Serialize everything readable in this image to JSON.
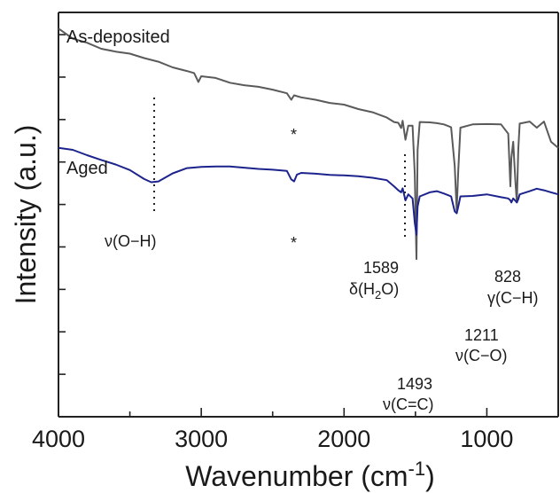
{
  "chart_data": {
    "type": "line",
    "title": "",
    "xlabel": "Wavenumber (cm",
    "xlabel_sup": "-1",
    "xlabel_close": ")",
    "ylabel": "Intensity (a.u.)",
    "xlim": [
      4000,
      500
    ],
    "x_reversed": true,
    "ylim": [
      0,
      100
    ],
    "y_tick_labels_shown": false,
    "grid": false,
    "x_ticks": [
      4000,
      3000,
      2000,
      1000
    ],
    "series": [
      {
        "name": "As-deposited",
        "color": "#5a5a5a",
        "points": [
          [
            4000,
            96
          ],
          [
            3900,
            93.5
          ],
          [
            3800,
            92.5
          ],
          [
            3700,
            91
          ],
          [
            3600,
            90.3
          ],
          [
            3500,
            89.8
          ],
          [
            3400,
            88.7
          ],
          [
            3300,
            87.8
          ],
          [
            3200,
            86.4
          ],
          [
            3100,
            85.5
          ],
          [
            3050,
            85
          ],
          [
            3020,
            82.8
          ],
          [
            3000,
            84.2
          ],
          [
            2900,
            83.8
          ],
          [
            2800,
            82.6
          ],
          [
            2700,
            82
          ],
          [
            2600,
            81.6
          ],
          [
            2500,
            80.9
          ],
          [
            2400,
            80
          ],
          [
            2370,
            78.4
          ],
          [
            2350,
            79.5
          ],
          [
            2300,
            79
          ],
          [
            2200,
            78.4
          ],
          [
            2100,
            77.6
          ],
          [
            2000,
            77.2
          ],
          [
            1900,
            76.1
          ],
          [
            1800,
            75.3
          ],
          [
            1700,
            74
          ],
          [
            1650,
            72.9
          ],
          [
            1620,
            72.7
          ],
          [
            1600,
            71.4
          ],
          [
            1590,
            73.2
          ],
          [
            1570,
            68.5
          ],
          [
            1550,
            72
          ],
          [
            1520,
            72
          ],
          [
            1505,
            60
          ],
          [
            1493,
            39
          ],
          [
            1485,
            66
          ],
          [
            1470,
            72.9
          ],
          [
            1400,
            72.8
          ],
          [
            1350,
            72.6
          ],
          [
            1300,
            72.3
          ],
          [
            1250,
            71.6
          ],
          [
            1225,
            62
          ],
          [
            1211,
            51
          ],
          [
            1200,
            61
          ],
          [
            1185,
            71.5
          ],
          [
            1100,
            72.3
          ],
          [
            1000,
            72.4
          ],
          [
            900,
            72.3
          ],
          [
            850,
            70
          ],
          [
            835,
            57
          ],
          [
            828,
            64
          ],
          [
            815,
            68
          ],
          [
            800,
            58
          ],
          [
            790,
            53
          ],
          [
            780,
            66
          ],
          [
            770,
            72.5
          ],
          [
            700,
            73
          ],
          [
            650,
            71.5
          ],
          [
            600,
            73
          ],
          [
            550,
            68
          ],
          [
            500,
            66.5
          ]
        ]
      },
      {
        "name": "Aged",
        "color": "#1c238c",
        "points": [
          [
            4000,
            66.5
          ],
          [
            3900,
            66
          ],
          [
            3800,
            64.7
          ],
          [
            3700,
            63.5
          ],
          [
            3600,
            62.4
          ],
          [
            3500,
            61
          ],
          [
            3400,
            58.8
          ],
          [
            3350,
            58
          ],
          [
            3300,
            58.2
          ],
          [
            3200,
            60.2
          ],
          [
            3100,
            61.5
          ],
          [
            3000,
            61.8
          ],
          [
            2900,
            61.9
          ],
          [
            2800,
            61.9
          ],
          [
            2700,
            61.6
          ],
          [
            2600,
            61.3
          ],
          [
            2500,
            61.1
          ],
          [
            2400,
            60.8
          ],
          [
            2370,
            58.7
          ],
          [
            2350,
            58.2
          ],
          [
            2330,
            59.9
          ],
          [
            2300,
            60.3
          ],
          [
            2200,
            60.1
          ],
          [
            2100,
            59.8
          ],
          [
            2000,
            59.7
          ],
          [
            1900,
            59.5
          ],
          [
            1800,
            59.1
          ],
          [
            1700,
            58.5
          ],
          [
            1650,
            57
          ],
          [
            1620,
            56
          ],
          [
            1600,
            55.5
          ],
          [
            1590,
            56.5
          ],
          [
            1570,
            53.5
          ],
          [
            1550,
            55
          ],
          [
            1520,
            54
          ],
          [
            1505,
            48
          ],
          [
            1493,
            45
          ],
          [
            1485,
            52
          ],
          [
            1470,
            54.5
          ],
          [
            1400,
            55.5
          ],
          [
            1350,
            55.8
          ],
          [
            1300,
            55.2
          ],
          [
            1250,
            54.5
          ],
          [
            1225,
            50.8
          ],
          [
            1211,
            50.3
          ],
          [
            1200,
            52
          ],
          [
            1185,
            54.5
          ],
          [
            1100,
            54.6
          ],
          [
            1000,
            55
          ],
          [
            900,
            54.3
          ],
          [
            850,
            54
          ],
          [
            835,
            53.5
          ],
          [
            828,
            53
          ],
          [
            815,
            54
          ],
          [
            800,
            53.4
          ],
          [
            790,
            53
          ],
          [
            780,
            53.8
          ],
          [
            770,
            55
          ],
          [
            700,
            55.8
          ],
          [
            650,
            56.4
          ],
          [
            600,
            56
          ],
          [
            550,
            55.5
          ],
          [
            500,
            55
          ]
        ]
      }
    ],
    "annotations": {
      "oh_label": "ν(O−H)",
      "star_1": "*",
      "star_2": "*",
      "peak_1589_num": "1589",
      "peak_1589_pre": "δ(H",
      "peak_1589_sub": "2",
      "peak_1589_post": "O)",
      "peak_1493_num": "1493",
      "peak_1493_mode": "ν(C=C)",
      "peak_1211_num": "1211",
      "peak_1211_mode": "ν(C−O)",
      "peak_828_num": "828",
      "peak_828_mode": "γ(C−H)"
    }
  }
}
